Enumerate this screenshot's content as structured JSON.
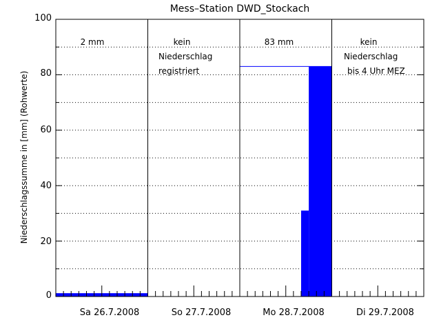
{
  "chart_data": {
    "type": "bar",
    "title": "Mess–Station DWD_Stockach",
    "xlabel": "",
    "ylabel": "Niederschlagssumme in [mm] (Rohwerte)",
    "ylim": [
      0,
      100
    ],
    "y_ticks": [
      "0",
      "20",
      "40",
      "60",
      "80",
      "100"
    ],
    "x_unit": "hours since 26.7.2008 00:00",
    "xlim": [
      0,
      96
    ],
    "day_labels": [
      "Sa 26.7.2008",
      "So 27.7.2008",
      "Mo 28.7.2008",
      "Di 29.7.2008"
    ],
    "gridlines": "dotted horizontal every 10",
    "series": [
      {
        "bars": [
          {
            "x0": 0,
            "x1": 18,
            "value": 1.2
          },
          {
            "x0": 18,
            "x1": 24,
            "value": 1.2
          },
          {
            "x0": 64,
            "x1": 66,
            "value": 31
          },
          {
            "x0": 66,
            "x1": 72,
            "value": 83
          }
        ]
      }
    ],
    "daily_totals": {
      "value": 83
    }
  },
  "annotations": {
    "day1": "2 mm",
    "day2_line1": "kein",
    "day2_line2": "Niederschlag",
    "day2_line3": "registriert",
    "day3": "83 mm",
    "day4_line1": "kein",
    "day4_line2": "Niederschlag",
    "day4_line3": "bis 4 Uhr MEZ"
  },
  "colors": {
    "bar": "#0000ff",
    "axis": "#000000"
  }
}
